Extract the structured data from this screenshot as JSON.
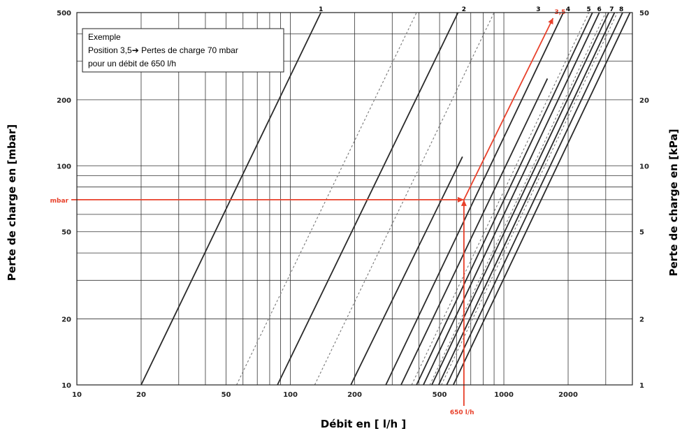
{
  "chart_data": {
    "type": "line",
    "xlabel": "Débit en [ l/h ]",
    "ylabel_left": "Perte de charge en [mbar]",
    "ylabel_right": "Perte de charge en [kPa]",
    "x_scale": "log",
    "y_scale": "log",
    "xlim": [
      10,
      4000
    ],
    "ylim": [
      10,
      500
    ],
    "x_ticks": [
      10,
      20,
      50,
      100,
      200,
      500,
      1000,
      2000
    ],
    "x_tick_labels": [
      "10",
      "20",
      "50",
      "100",
      "200",
      "500",
      "1000",
      "2000"
    ],
    "x_minor_gridlines": [
      30,
      40,
      60,
      70,
      80,
      90,
      300,
      400,
      600,
      700,
      800,
      900,
      3000,
      4000
    ],
    "y_ticks": [
      10,
      20,
      50,
      100,
      200,
      500
    ],
    "y_tick_labels": [
      "10",
      "20",
      "50",
      "100",
      "200",
      "500"
    ],
    "y_minor_gridlines": [
      30,
      40,
      60,
      70,
      80,
      90,
      300,
      400
    ],
    "y2_ticks": [
      10,
      20,
      50,
      100,
      200,
      500
    ],
    "y2_tick_labels": [
      "1",
      "2",
      "5",
      "10",
      "20",
      "50"
    ],
    "grid": true,
    "series": [
      {
        "name": "1",
        "style": "solid",
        "x": [
          20,
          139
        ],
        "y": [
          10,
          500
        ]
      },
      {
        "name": "",
        "style": "dotted",
        "x": [
          56,
          390
        ],
        "y": [
          10,
          500
        ]
      },
      {
        "name": "",
        "style": "dotted",
        "x": [
          130,
          900
        ],
        "y": [
          10,
          500
        ]
      },
      {
        "name": "",
        "style": "solid",
        "x": [
          87,
          610
        ],
        "y": [
          10,
          500
        ]
      },
      {
        "name": "2",
        "style": "solid",
        "x": [
          192,
          640
        ],
        "y": [
          10,
          110
        ]
      },
      {
        "name": "",
        "style": "solid",
        "x": [
          280,
          1900
        ],
        "y": [
          10,
          500
        ]
      },
      {
        "name": "3",
        "style": "solid",
        "x": [
          330,
          1600
        ],
        "y": [
          10,
          250
        ]
      },
      {
        "name": "",
        "style": "dotted",
        "x": [
          370,
          2500
        ],
        "y": [
          10,
          500
        ]
      },
      {
        "name": "4",
        "style": "solid",
        "x": [
          390,
          2600
        ],
        "y": [
          10,
          500
        ]
      },
      {
        "name": "",
        "style": "solid",
        "x": [
          420,
          2800
        ],
        "y": [
          10,
          500
        ]
      },
      {
        "name": "5",
        "style": "solid",
        "x": [
          460,
          3100
        ],
        "y": [
          10,
          500
        ]
      },
      {
        "name": "6",
        "style": "solid",
        "x": [
          495,
          3300
        ],
        "y": [
          10,
          500
        ]
      },
      {
        "name": "",
        "style": "dotted",
        "x": [
          510,
          3400
        ],
        "y": [
          10,
          500
        ]
      },
      {
        "name": "7",
        "style": "solid",
        "x": [
          540,
          3600
        ],
        "y": [
          10,
          500
        ]
      },
      {
        "name": "8",
        "style": "solid",
        "x": [
          580,
          3900
        ],
        "y": [
          10,
          500
        ]
      },
      {
        "name": "",
        "style": "dotted",
        "x": [
          450,
          3000
        ],
        "y": [
          10,
          500
        ]
      }
    ],
    "curve_labels": [
      {
        "text": "1",
        "x": 139
      },
      {
        "text": "2",
        "x": 650
      },
      {
        "text": "3",
        "x": 1450
      },
      {
        "text": "4",
        "x": 2000
      },
      {
        "text": "5",
        "x": 2500
      },
      {
        "text": "6",
        "x": 2800
      },
      {
        "text": "7",
        "x": 3200
      },
      {
        "text": "8",
        "x": 3550
      }
    ],
    "example": {
      "flow": 650,
      "pressure": 70,
      "end_x": 1700,
      "end_y": 500,
      "position_label": "3,5",
      "flow_label": "650 l/h",
      "pressure_label": "mbar",
      "color": "#e8402a"
    }
  },
  "annotation_box": {
    "line1": "Exemple",
    "line2": "Position 3,5➔ Pertes de charge 70 mbar",
    "line3": "pour un débit de 650 l/h"
  }
}
